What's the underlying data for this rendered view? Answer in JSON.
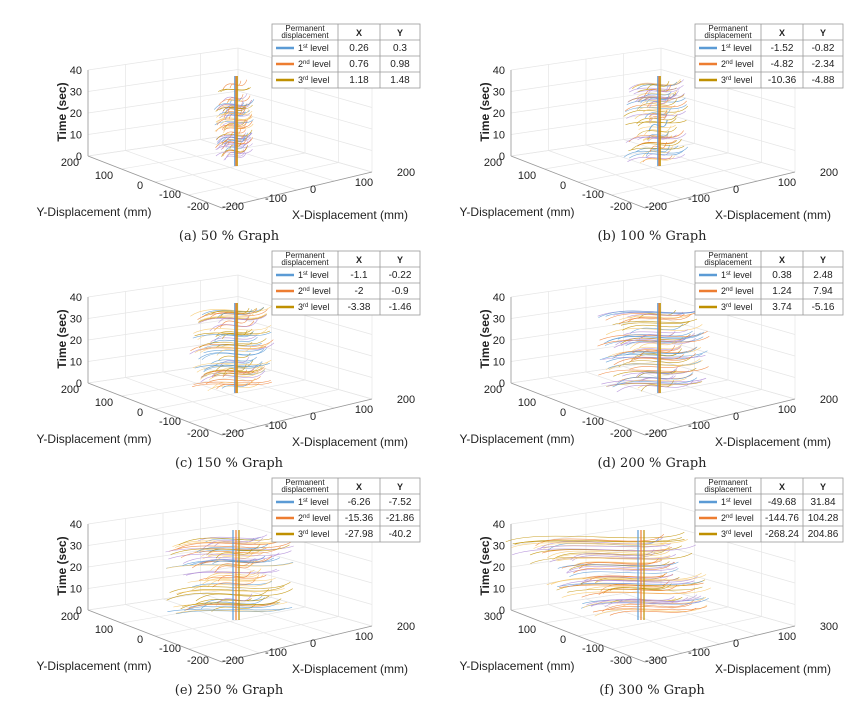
{
  "figure": {
    "legend_header": {
      "label_line1": "Permanent",
      "label_line2": "displacement",
      "x": "X",
      "y": "Y"
    },
    "axis_labels": {
      "z": "Time (sec)",
      "y": "Y-Displacement (mm)",
      "x": "X-Displacement (mm)"
    },
    "series_colors": {
      "1st": "#5b9bd5",
      "2nd": "#ed7d31",
      "3rd": "#bf9000",
      "trace_light": "#f7c86a"
    }
  },
  "chart_data": [
    {
      "type": "scatter",
      "caption": "(a) 50 % Graph",
      "xlabel": "X-Displacement (mm)",
      "ylabel": "Y-Displacement (mm)",
      "zlabel": "Time (sec)",
      "xlim": [
        -200,
        200
      ],
      "ylim": [
        -200,
        200
      ],
      "zlim": [
        0,
        40
      ],
      "xticks": [
        "-200",
        "-100",
        "0",
        "100",
        "200"
      ],
      "yticks": [
        "200",
        "100",
        "0",
        "-100",
        "-200"
      ],
      "zticks": [
        "0",
        "10",
        "20",
        "30",
        "40"
      ],
      "spread": 40,
      "legend": [
        {
          "level": "1",
          "suffix": "st",
          "label": "level",
          "x": "0.26",
          "y": "0.3"
        },
        {
          "level": "2",
          "suffix": "nd",
          "label": "level",
          "x": "0.76",
          "y": "0.98"
        },
        {
          "level": "3",
          "suffix": "rd",
          "label": "level",
          "x": "1.18",
          "y": "1.48"
        }
      ]
    },
    {
      "type": "scatter",
      "caption": "(b) 100 % Graph",
      "xlabel": "X-Displacement (mm)",
      "ylabel": "Y-Displacement (mm)",
      "zlabel": "Time (sec)",
      "xlim": [
        -200,
        200
      ],
      "ylim": [
        -200,
        200
      ],
      "zlim": [
        0,
        40
      ],
      "xticks": [
        "-200",
        "-100",
        "0",
        "100",
        "200"
      ],
      "yticks": [
        "200",
        "100",
        "0",
        "-100",
        "-200"
      ],
      "zticks": [
        "0",
        "10",
        "20",
        "30",
        "40"
      ],
      "spread": 65,
      "legend": [
        {
          "level": "1",
          "suffix": "st",
          "label": "level",
          "x": "-1.52",
          "y": "-0.82"
        },
        {
          "level": "2",
          "suffix": "nd",
          "label": "level",
          "x": "-4.82",
          "y": "-2.34"
        },
        {
          "level": "3",
          "suffix": "rd",
          "label": "level",
          "x": "-10.36",
          "y": "-4.88"
        }
      ]
    },
    {
      "type": "scatter",
      "caption": "(c) 150 % Graph",
      "xlabel": "X-Displacement (mm)",
      "ylabel": "Y-Displacement (mm)",
      "zlabel": "Time (sec)",
      "xlim": [
        -200,
        200
      ],
      "ylim": [
        -200,
        200
      ],
      "zlim": [
        0,
        40
      ],
      "xticks": [
        "-200",
        "-100",
        "0",
        "100",
        "200"
      ],
      "yticks": [
        "200",
        "100",
        "0",
        "-100",
        "-200"
      ],
      "zticks": [
        "0",
        "10",
        "20",
        "30",
        "40"
      ],
      "spread": 85,
      "legend": [
        {
          "level": "1",
          "suffix": "st",
          "label": "level",
          "x": "-1.1",
          "y": "-0.22"
        },
        {
          "level": "2",
          "suffix": "nd",
          "label": "level",
          "x": "-2",
          "y": "-0.9"
        },
        {
          "level": "3",
          "suffix": "rd",
          "label": "level",
          "x": "-3.38",
          "y": "-1.46"
        }
      ]
    },
    {
      "type": "scatter",
      "caption": "(d) 200 % Graph",
      "xlabel": "X-Displacement (mm)",
      "ylabel": "Y-Displacement (mm)",
      "zlabel": "Time (sec)",
      "xlim": [
        -200,
        200
      ],
      "ylim": [
        -200,
        200
      ],
      "zlim": [
        0,
        40
      ],
      "xticks": [
        "-200",
        "-100",
        "0",
        "100",
        "200"
      ],
      "yticks": [
        "200",
        "100",
        "0",
        "-100",
        "-200"
      ],
      "zticks": [
        "0",
        "10",
        "20",
        "30",
        "40"
      ],
      "spread": 115,
      "legend": [
        {
          "level": "1",
          "suffix": "st",
          "label": "level",
          "x": "0.38",
          "y": "2.48"
        },
        {
          "level": "2",
          "suffix": "nd",
          "label": "level",
          "x": "1.24",
          "y": "7.94"
        },
        {
          "level": "3",
          "suffix": "rd",
          "label": "level",
          "x": "3.74",
          "y": "-5.16"
        }
      ]
    },
    {
      "type": "scatter",
      "caption": "(e) 250 % Graph",
      "xlabel": "X-Displacement (mm)",
      "ylabel": "Y-Displacement (mm)",
      "zlabel": "Time (sec)",
      "xlim": [
        -200,
        200
      ],
      "ylim": [
        -200,
        200
      ],
      "zlim": [
        0,
        40
      ],
      "xticks": [
        "-200",
        "-100",
        "0",
        "100",
        "200"
      ],
      "yticks": [
        "200",
        "100",
        "0",
        "-100",
        "-200"
      ],
      "zticks": [
        "0",
        "10",
        "20",
        "30",
        "40"
      ],
      "spread": 130,
      "legend": [
        {
          "level": "1",
          "suffix": "st",
          "label": "level",
          "x": "-6.26",
          "y": "-7.52"
        },
        {
          "level": "2",
          "suffix": "nd",
          "label": "level",
          "x": "-15.36",
          "y": "-21.86"
        },
        {
          "level": "3",
          "suffix": "rd",
          "label": "level",
          "x": "-27.98",
          "y": "-40.2"
        }
      ]
    },
    {
      "type": "scatter",
      "caption": "(f) 300 % Graph",
      "xlabel": "X-Displacement (mm)",
      "ylabel": "Y-Displacement (mm)",
      "zlabel": "Time (sec)",
      "xlim": [
        -300,
        300
      ],
      "ylim": [
        -300,
        300
      ],
      "zlim": [
        0,
        40
      ],
      "xticks": [
        "-300",
        "-100",
        "0",
        "100",
        "300"
      ],
      "yticks": [
        "300",
        "100",
        "0",
        "-100",
        "-300"
      ],
      "zticks": [
        "0",
        "10",
        "20",
        "30",
        "40"
      ],
      "spread": 150,
      "legend": [
        {
          "level": "1",
          "suffix": "st",
          "label": "level",
          "x": "-49.68",
          "y": "31.84"
        },
        {
          "level": "2",
          "suffix": "nd",
          "label": "level",
          "x": "-144.76",
          "y": "104.28"
        },
        {
          "level": "3",
          "suffix": "rd",
          "label": "level",
          "x": "-268.24",
          "y": "204.86"
        }
      ]
    }
  ]
}
